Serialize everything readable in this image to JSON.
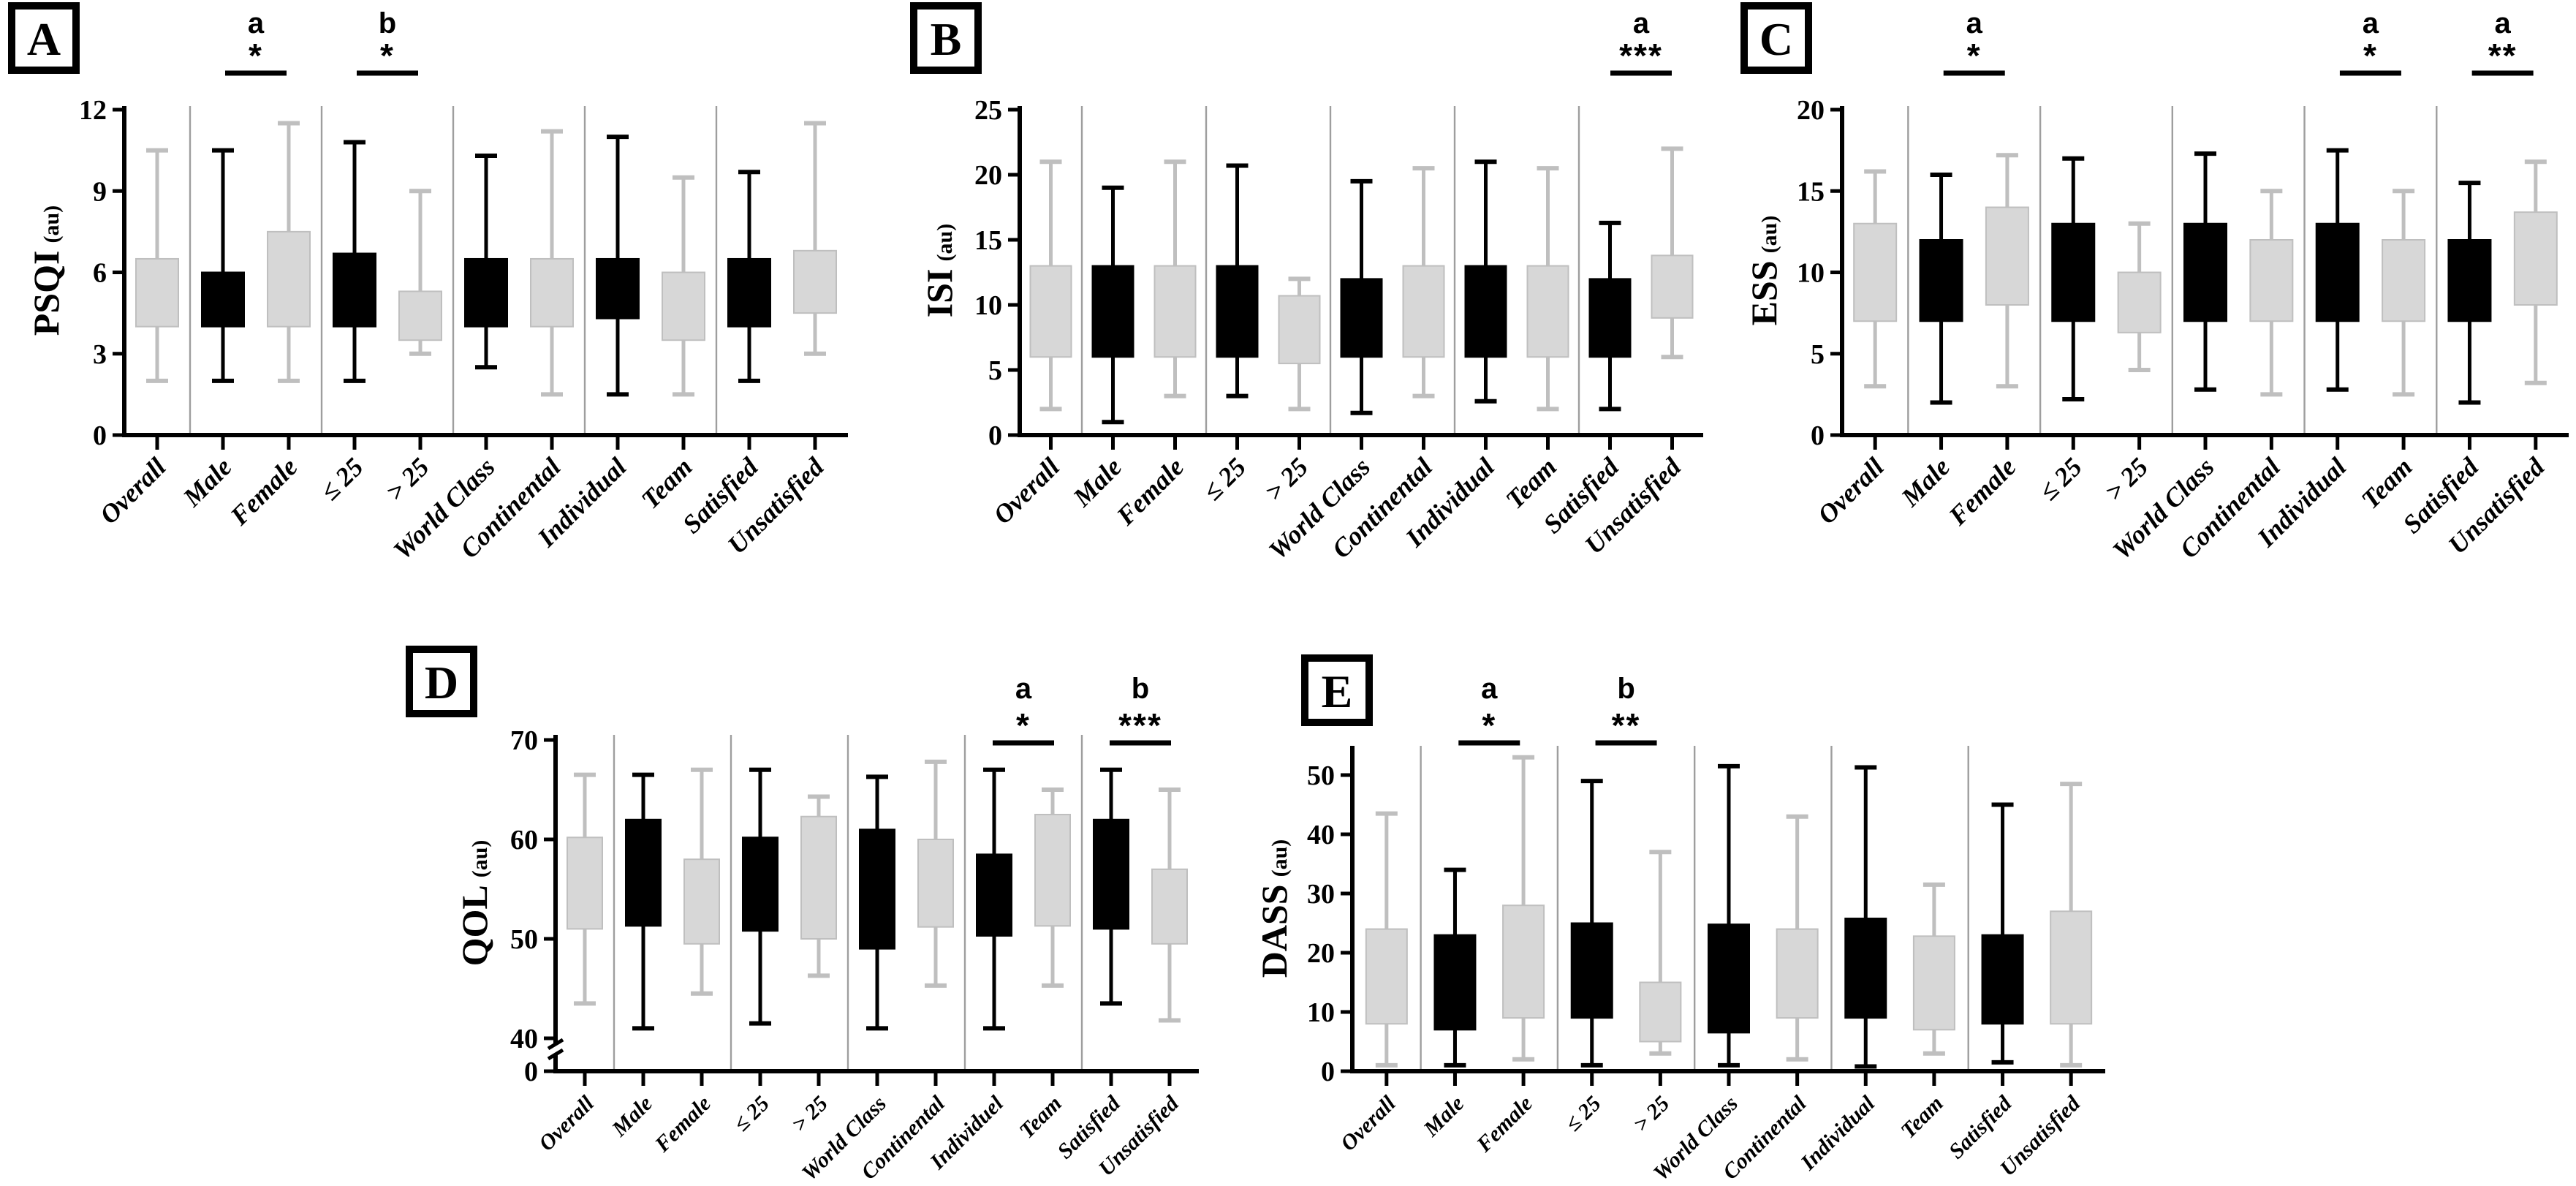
{
  "figure_title": "",
  "colors": {
    "black": "#000000",
    "gray_fill": "#d7d7d7",
    "gray_line": "#bfbfbf",
    "separator": "#9e9e9e",
    "axis": "#000000",
    "badge_border": "#000000"
  },
  "unit_label": "(au)",
  "chart_data": [
    {
      "id": "A",
      "badge": "A",
      "type": "box",
      "ylabel": "PSQI",
      "unit": "(au)",
      "ylim": [
        0,
        12
      ],
      "yticks": [
        0,
        3,
        6,
        9,
        12
      ],
      "grid": false,
      "categories": [
        "Overall",
        "Male",
        "Female",
        "≤ 25",
        "> 25",
        "World Class",
        "Continental",
        "Individual",
        "Team",
        "Satisfied",
        "Unsatisfied"
      ],
      "separators_after": [
        0,
        2,
        4,
        6,
        8
      ],
      "boxes": [
        {
          "min": 2,
          "q1": 4,
          "q3": 6.5,
          "max": 10.5
        },
        {
          "min": 2,
          "q1": 4,
          "q3": 6,
          "max": 10.5
        },
        {
          "min": 2,
          "q1": 4,
          "q3": 7.5,
          "max": 11.5
        },
        {
          "min": 2,
          "q1": 4,
          "q3": 6.7,
          "max": 10.8
        },
        {
          "min": 3,
          "q1": 3.5,
          "q3": 5.3,
          "max": 9
        },
        {
          "min": 2.5,
          "q1": 4,
          "q3": 6.5,
          "max": 10.3
        },
        {
          "min": 1.5,
          "q1": 4,
          "q3": 6.5,
          "max": 11.2
        },
        {
          "min": 1.5,
          "q1": 4.3,
          "q3": 6.5,
          "max": 11
        },
        {
          "min": 1.5,
          "q1": 3.5,
          "q3": 6,
          "max": 9.5
        },
        {
          "min": 2,
          "q1": 4,
          "q3": 6.5,
          "max": 9.7
        },
        {
          "min": 3,
          "q1": 4.5,
          "q3": 6.8,
          "max": 11.5
        }
      ],
      "annotations": [
        {
          "letter": "a",
          "stars": "*",
          "pair": [
            1,
            2
          ]
        },
        {
          "letter": "b",
          "stars": "*",
          "pair": [
            3,
            4
          ]
        }
      ]
    },
    {
      "id": "B",
      "badge": "B",
      "type": "box",
      "ylabel": "ISI",
      "unit": "(au)",
      "ylim": [
        0,
        25
      ],
      "yticks": [
        0,
        5,
        10,
        15,
        20,
        25
      ],
      "grid": false,
      "categories": [
        "Overall",
        "Male",
        "Female",
        "≤ 25",
        "> 25",
        "World Class",
        "Continental",
        "Individual",
        "Team",
        "Satisfied",
        "Unsatisfied"
      ],
      "separators_after": [
        0,
        2,
        4,
        6,
        8
      ],
      "boxes": [
        {
          "min": 2,
          "q1": 6,
          "q3": 13,
          "max": 21
        },
        {
          "min": 1,
          "q1": 6,
          "q3": 13,
          "max": 19
        },
        {
          "min": 3,
          "q1": 6,
          "q3": 13,
          "max": 21
        },
        {
          "min": 3,
          "q1": 6,
          "q3": 13,
          "max": 20.7
        },
        {
          "min": 2,
          "q1": 5.5,
          "q3": 10.7,
          "max": 12
        },
        {
          "min": 1.7,
          "q1": 6,
          "q3": 12,
          "max": 19.5
        },
        {
          "min": 3,
          "q1": 6,
          "q3": 13,
          "max": 20.5
        },
        {
          "min": 2.6,
          "q1": 6,
          "q3": 13,
          "max": 21
        },
        {
          "min": 2,
          "q1": 6,
          "q3": 13,
          "max": 20.5
        },
        {
          "min": 2,
          "q1": 6,
          "q3": 12,
          "max": 16.3
        },
        {
          "min": 6,
          "q1": 9,
          "q3": 13.8,
          "max": 22
        }
      ],
      "annotations": [
        {
          "letter": "a",
          "stars": "***",
          "pair": [
            9,
            10
          ]
        }
      ]
    },
    {
      "id": "C",
      "badge": "C",
      "type": "box",
      "ylabel": "ESS",
      "unit": "(au)",
      "ylim": [
        0,
        20
      ],
      "yticks": [
        0,
        5,
        10,
        15,
        20
      ],
      "grid": false,
      "categories": [
        "Overall",
        "Male",
        "Female",
        "≤ 25",
        "> 25",
        "World Class",
        "Continental",
        "Individual",
        "Team",
        "Satisfied",
        "Unsatisfied"
      ],
      "separators_after": [
        0,
        2,
        4,
        6,
        8
      ],
      "boxes": [
        {
          "min": 3,
          "q1": 7,
          "q3": 13,
          "max": 16.2
        },
        {
          "min": 2,
          "q1": 7,
          "q3": 12,
          "max": 16
        },
        {
          "min": 3,
          "q1": 8,
          "q3": 14,
          "max": 17.2
        },
        {
          "min": 2.2,
          "q1": 7,
          "q3": 13,
          "max": 17
        },
        {
          "min": 4,
          "q1": 6.3,
          "q3": 10,
          "max": 13
        },
        {
          "min": 2.8,
          "q1": 7,
          "q3": 13,
          "max": 17.3
        },
        {
          "min": 2.5,
          "q1": 7,
          "q3": 12,
          "max": 15
        },
        {
          "min": 2.8,
          "q1": 7,
          "q3": 13,
          "max": 17.5
        },
        {
          "min": 2.5,
          "q1": 7,
          "q3": 12,
          "max": 15
        },
        {
          "min": 2,
          "q1": 7,
          "q3": 12,
          "max": 15.5
        },
        {
          "min": 3.2,
          "q1": 8,
          "q3": 13.7,
          "max": 16.8
        }
      ],
      "annotations": [
        {
          "letter": "a",
          "stars": "*",
          "pair": [
            1,
            2
          ]
        },
        {
          "letter": "a",
          "stars": "*",
          "pair": [
            7,
            8
          ]
        },
        {
          "letter": "a",
          "stars": "**",
          "pair": [
            9,
            10
          ]
        }
      ]
    },
    {
      "id": "D",
      "badge": "D",
      "type": "box",
      "ylabel": "QOL",
      "unit": "(au)",
      "ylim": [
        0,
        70
      ],
      "yticks": [
        0,
        40,
        50,
        60,
        70
      ],
      "axis_break": true,
      "grid": false,
      "categories": [
        "Overall",
        "Male",
        "Female",
        "≤ 25",
        "> 25",
        "World Class",
        "Continental",
        "Individuel",
        "Team",
        "Satisfied",
        "Unsatisfied"
      ],
      "separators_after": [
        0,
        2,
        4,
        6,
        8
      ],
      "boxes": [
        {
          "min": 43.5,
          "q1": 51,
          "q3": 60.2,
          "max": 66.5
        },
        {
          "min": 41,
          "q1": 51.3,
          "q3": 62,
          "max": 66.5
        },
        {
          "min": 44.5,
          "q1": 49.5,
          "q3": 58,
          "max": 67
        },
        {
          "min": 41.5,
          "q1": 50.8,
          "q3": 60.2,
          "max": 67
        },
        {
          "min": 46.3,
          "q1": 50,
          "q3": 62.3,
          "max": 64.3
        },
        {
          "min": 41,
          "q1": 49,
          "q3": 61,
          "max": 66.3
        },
        {
          "min": 45.3,
          "q1": 51.2,
          "q3": 60,
          "max": 67.8
        },
        {
          "min": 41,
          "q1": 50.3,
          "q3": 58.5,
          "max": 67
        },
        {
          "min": 45.3,
          "q1": 51.3,
          "q3": 62.5,
          "max": 65
        },
        {
          "min": 43.5,
          "q1": 51,
          "q3": 62,
          "max": 67
        },
        {
          "min": 41.8,
          "q1": 49.5,
          "q3": 57,
          "max": 65
        }
      ],
      "annotations": [
        {
          "letter": "a",
          "stars": "*",
          "pair": [
            7,
            8
          ]
        },
        {
          "letter": "b",
          "stars": "***",
          "pair": [
            9,
            10
          ]
        }
      ]
    },
    {
      "id": "E",
      "badge": "E",
      "type": "box",
      "ylabel": "DASS",
      "unit": "(au)",
      "ylim": [
        0,
        55
      ],
      "yticks": [
        0,
        10,
        20,
        30,
        40,
        50
      ],
      "grid": false,
      "categories": [
        "Overall",
        "Male",
        "Female",
        "≤ 25",
        "> 25",
        "World Class",
        "Continental",
        "Individual",
        "Team",
        "Satisfied",
        "Unsatisfied"
      ],
      "separators_after": [
        0,
        2,
        4,
        6,
        8
      ],
      "boxes": [
        {
          "min": 1,
          "q1": 8,
          "q3": 24,
          "max": 43.5
        },
        {
          "min": 1,
          "q1": 7,
          "q3": 23,
          "max": 34
        },
        {
          "min": 2,
          "q1": 9,
          "q3": 28,
          "max": 53
        },
        {
          "min": 1,
          "q1": 9,
          "q3": 25,
          "max": 49
        },
        {
          "min": 3,
          "q1": 5,
          "q3": 15,
          "max": 37
        },
        {
          "min": 1,
          "q1": 6.5,
          "q3": 24.8,
          "max": 51.5
        },
        {
          "min": 2,
          "q1": 9,
          "q3": 24,
          "max": 43
        },
        {
          "min": 0.8,
          "q1": 9,
          "q3": 25.8,
          "max": 51.3
        },
        {
          "min": 3,
          "q1": 7,
          "q3": 22.8,
          "max": 31.5
        },
        {
          "min": 1.5,
          "q1": 8,
          "q3": 23,
          "max": 45
        },
        {
          "min": 1,
          "q1": 8,
          "q3": 27,
          "max": 48.5
        }
      ],
      "annotations": [
        {
          "letter": "a",
          "stars": "*",
          "pair": [
            1,
            2
          ]
        },
        {
          "letter": "b",
          "stars": "**",
          "pair": [
            3,
            4
          ]
        }
      ]
    }
  ]
}
